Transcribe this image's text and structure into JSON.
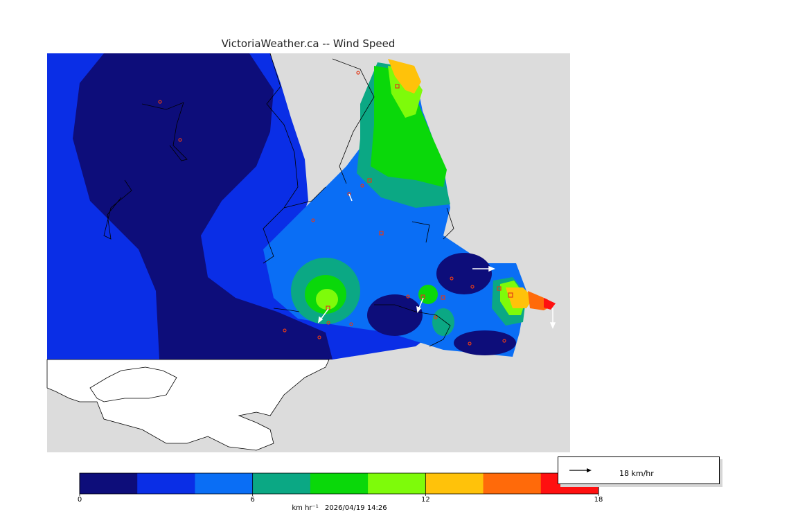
{
  "title": "VictoriaWeather.ca -- Wind Speed",
  "colorbar": {
    "min": 0,
    "max": 18,
    "tick_values": [
      0,
      6,
      12,
      18
    ],
    "tick_labels": [
      "0",
      "6",
      "12",
      "18"
    ],
    "colors": [
      "#0d0d7a",
      "#0a2ee6",
      "#0a6ef5",
      "#0ba884",
      "#0ad80a",
      "#7efb0a",
      "#ffc20a",
      "#ff6a0a",
      "#ff1010"
    ],
    "units": "km hr⁻¹",
    "timestamp": "2026/04/19 14:26"
  },
  "reference_vector": {
    "label": "18 km/hr"
  },
  "colors": {
    "land": "#dcdcdc",
    "water_unplotted": "#ffffff",
    "station_marker": "#e03a1a",
    "wind_vector": "#ffffff"
  }
}
